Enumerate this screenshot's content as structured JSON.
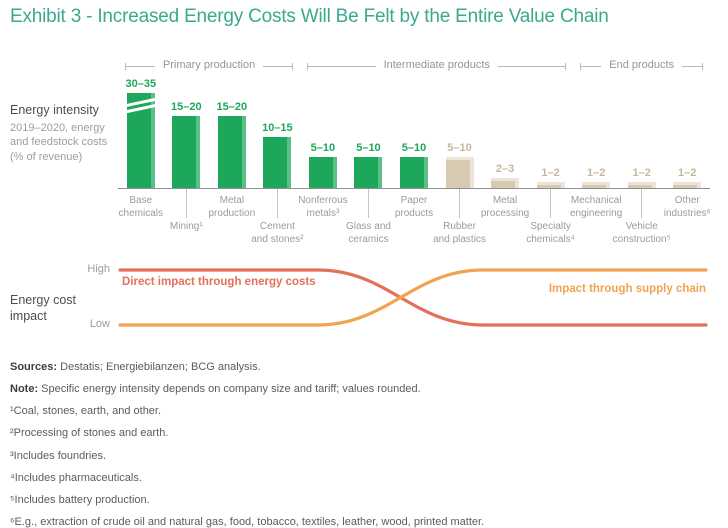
{
  "title": "Exhibit 3 - Increased Energy Costs Will Be Felt by the Entire Value Chain",
  "colors": {
    "title_teal": "#3BA890",
    "bar_green": "#1DA75A",
    "bar_tan": "#D8C9B2",
    "tan_value_label": "#C7B69B",
    "line_red": "#E2715A",
    "line_orange": "#F0A352",
    "axis_gray": "#9B9B9B"
  },
  "value_chain_segments": [
    {
      "label": "Primary production",
      "start_col": 0,
      "end_col": 3
    },
    {
      "label": "Intermediate products",
      "start_col": 4,
      "end_col": 9
    },
    {
      "label": "End products",
      "start_col": 10,
      "end_col": 12
    }
  ],
  "chart_data": [
    {
      "type": "bar",
      "title": "Energy intensity",
      "subtitle": "2019–2020, energy and feedstock costs (% of revenue)",
      "categories": [
        "Base chemicals",
        "Mining¹",
        "Metal production",
        "Cement and stones²",
        "Nonferrous metals³",
        "Glass and ceramics",
        "Paper products",
        "Rubber and plastics",
        "Metal processing",
        "Specialty chemicals⁴",
        "Mechanical engineering",
        "Vehicle construction⁵",
        "Other industries⁶"
      ],
      "category_label_lines": [
        [
          "Base",
          "chemicals"
        ],
        [
          "Mining¹"
        ],
        [
          "Metal",
          "production"
        ],
        [
          "Cement",
          "and stones²"
        ],
        [
          "Nonferrous",
          "metals³"
        ],
        [
          "Glass and",
          "ceramics"
        ],
        [
          "Paper",
          "products"
        ],
        [
          "Rubber",
          "and plastics"
        ],
        [
          "Metal",
          "processing"
        ],
        [
          "Specialty",
          "chemicals⁴"
        ],
        [
          "Mechanical",
          "engineering"
        ],
        [
          "Vehicle",
          "construction⁵"
        ],
        [
          "Other",
          "industries⁶"
        ]
      ],
      "value_labels": [
        "30–35",
        "15–20",
        "15–20",
        "10–15",
        "5–10",
        "5–10",
        "5–10",
        "5–10",
        "2–3",
        "1–2",
        "1–2",
        "1–2",
        "1–2"
      ],
      "values_mid": [
        32.5,
        17.5,
        17.5,
        12.5,
        7.5,
        7.5,
        7.5,
        7.5,
        2.5,
        1.5,
        1.5,
        1.5,
        1.5
      ],
      "bar_palette": [
        "green",
        "green",
        "green",
        "green",
        "green",
        "green",
        "green",
        "tan",
        "tan",
        "tan",
        "tan",
        "tan",
        "tan"
      ],
      "axis_break_first_bar": true,
      "ylabel": "% of revenue",
      "grid": false
    },
    {
      "type": "line",
      "title": "Energy cost impact",
      "y_ticks": [
        "High",
        "Low"
      ],
      "x_span_labels": [
        "Primary production",
        "Intermediate products",
        "End products"
      ],
      "series": [
        {
          "name": "Direct impact through energy costs",
          "start": "High",
          "end": "Low"
        },
        {
          "name": "Impact through supply chain",
          "start": "Low",
          "end": "High"
        }
      ],
      "legend_position": "on-line-labels"
    }
  ],
  "notes": [
    {
      "bold": "Sources:",
      "text": " Destatis; Energiebilanzen; BCG analysis."
    },
    {
      "bold": "Note:",
      "text": " Specific energy intensity depends on company size and tariff; values rounded."
    },
    {
      "bold": "",
      "text": "¹Coal, stones, earth, and other."
    },
    {
      "bold": "",
      "text": "²Processing of stones and earth."
    },
    {
      "bold": "",
      "text": "³Includes foundries."
    },
    {
      "bold": "",
      "text": "⁴Includes pharmaceuticals."
    },
    {
      "bold": "",
      "text": "⁵Includes battery production."
    },
    {
      "bold": "",
      "text": "⁶E.g., extraction of crude oil and natural gas, food, tobacco, textiles, leather, wood, printed matter."
    }
  ]
}
